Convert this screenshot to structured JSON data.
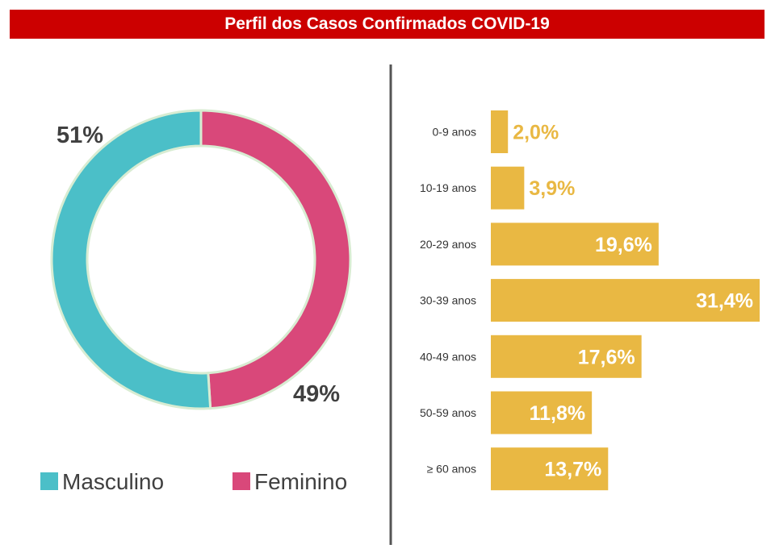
{
  "title": "Perfil dos Casos Confirmados COVID-19",
  "colors": {
    "title_bg": "#cc0000",
    "masculino": "#4bbfc8",
    "feminino": "#d9487a",
    "ring_border": "#d8ecd2",
    "bars": "#e9b843",
    "divider": "#555555",
    "text_dark": "#404040"
  },
  "chart_data": [
    {
      "type": "pie",
      "donut": true,
      "slices": [
        {
          "name": "Masculino",
          "value": 51,
          "label": "51%"
        },
        {
          "name": "Feminino",
          "value": 49,
          "label": "49%"
        }
      ],
      "legend": {
        "placement": "bottom",
        "entries": [
          "Masculino",
          "Feminino"
        ]
      }
    },
    {
      "type": "bar",
      "orientation": "horizontal",
      "categories": [
        "0-9 anos",
        "10-19 anos",
        "20-29 anos",
        "30-39 anos",
        "40-49 anos",
        "50-59 anos",
        "≥ 60 anos"
      ],
      "values": [
        2.0,
        3.9,
        19.6,
        31.4,
        17.6,
        11.8,
        13.7
      ],
      "value_labels": [
        "2,0%",
        "3,9%",
        "19,6%",
        "31,4%",
        "17,6%",
        "11,8%",
        "13,7%"
      ],
      "xlim": [
        0,
        31.4
      ],
      "grid": false
    }
  ]
}
